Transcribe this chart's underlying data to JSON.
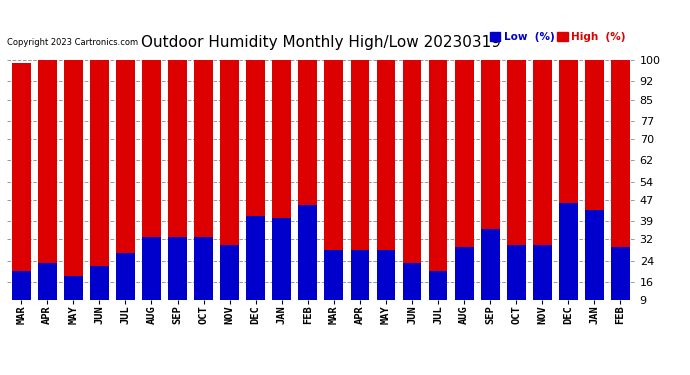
{
  "title": "Outdoor Humidity Monthly High/Low 20230319",
  "copyright_text": "Copyright 2023 Cartronics.com",
  "categories": [
    "MAR",
    "APR",
    "MAY",
    "JUN",
    "JUL",
    "AUG",
    "SEP",
    "OCT",
    "NOV",
    "DEC",
    "JAN",
    "FEB",
    "MAR",
    "APR",
    "MAY",
    "JUN",
    "JUL",
    "AUG",
    "SEP",
    "OCT",
    "NOV",
    "DEC",
    "JAN",
    "FEB"
  ],
  "high_values": [
    99,
    100,
    100,
    100,
    100,
    100,
    100,
    100,
    100,
    100,
    100,
    100,
    100,
    100,
    100,
    100,
    100,
    100,
    100,
    100,
    100,
    100,
    100,
    100
  ],
  "low_values": [
    20,
    23,
    18,
    22,
    27,
    33,
    33,
    33,
    30,
    41,
    40,
    45,
    28,
    28,
    28,
    23,
    20,
    29,
    36,
    30,
    30,
    46,
    43,
    29
  ],
  "high_color": "#dd0000",
  "low_color": "#0000cc",
  "yticks": [
    9,
    16,
    24,
    32,
    39,
    47,
    54,
    62,
    70,
    77,
    85,
    92,
    100
  ],
  "ylim_min": 9,
  "ylim_max": 103,
  "background_color": "#ffffff",
  "plot_bg_color": "#ffffff",
  "grid_color": "#999999",
  "title_color": "#000000",
  "title_fontsize": 11,
  "bar_width": 0.72,
  "legend_low_label": "Low  (%)",
  "legend_high_label": "High  (%)"
}
